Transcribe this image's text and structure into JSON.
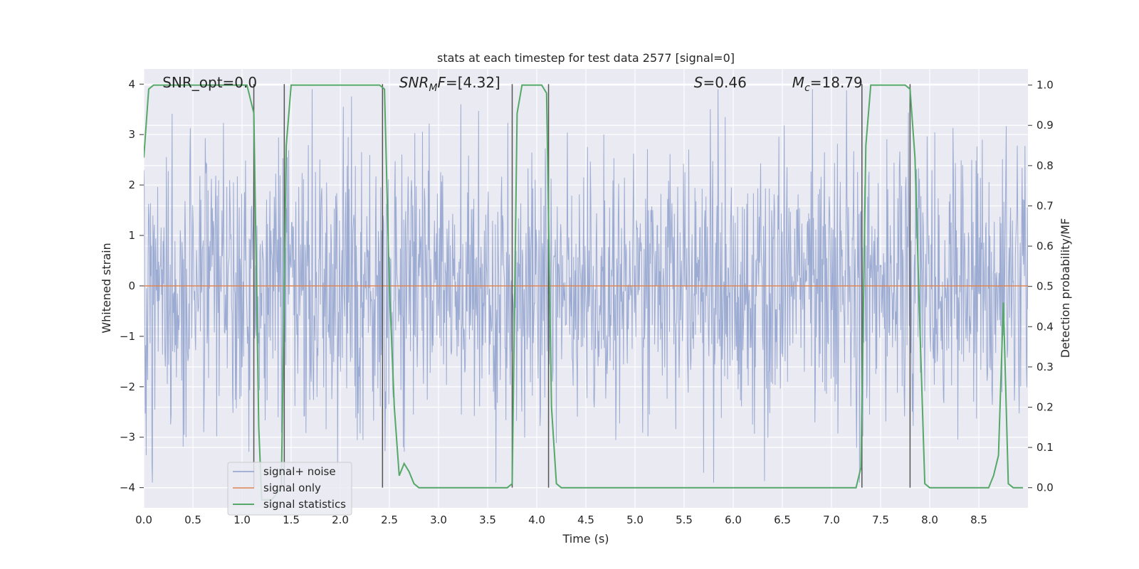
{
  "chart_data": {
    "type": "line",
    "title": "stats at each timestep for test data 2577 [signal=0]",
    "xlabel": "Time (s)",
    "ylabel": "Whitened strain",
    "ylabel_right": "Detection probability/MF",
    "xlim": [
      0,
      9
    ],
    "ylim": [
      -4.4,
      4.3
    ],
    "ylim_right": [
      -0.05,
      1.04
    ],
    "x_ticks": [
      0.0,
      0.5,
      1.0,
      1.5,
      2.0,
      2.5,
      3.0,
      3.5,
      4.0,
      4.5,
      5.0,
      5.5,
      6.0,
      6.5,
      7.0,
      7.5,
      8.0,
      8.5
    ],
    "x_tick_labels": [
      "0.0",
      "0.5",
      "1.0",
      "1.5",
      "2.0",
      "2.5",
      "3.0",
      "3.5",
      "4.0",
      "4.5",
      "5.0",
      "5.5",
      "6.0",
      "6.5",
      "7.0",
      "7.5",
      "8.0",
      "8.5"
    ],
    "y_ticks": [
      4,
      3,
      2,
      1,
      0,
      -1,
      -2,
      -3,
      -4
    ],
    "y_tick_labels": [
      "4",
      "3",
      "2",
      "1",
      "0",
      "−1",
      "−2",
      "−3",
      "−4"
    ],
    "y_right_ticks": [
      1.0,
      0.9,
      0.8,
      0.7,
      0.6,
      0.5,
      0.4,
      0.3,
      0.2,
      0.1,
      0.0
    ],
    "y_right_tick_labels": [
      "1.0",
      "0.9",
      "0.8",
      "0.7",
      "0.6",
      "0.5",
      "0.4",
      "0.3",
      "0.2",
      "0.1",
      "0.0"
    ],
    "grid": true,
    "legend_position": "lower-left",
    "annotations": [
      {
        "text": "SNR_opt=0.0",
        "x": 0.19,
        "y": 4.02
      },
      {
        "text": "SNR",
        "sub": "M",
        "suffix": "F=[4.32]",
        "italic": true,
        "x": 2.6,
        "y": 4.02
      },
      {
        "text": "S",
        "suffix": "=0.46",
        "italic": true,
        "x": 5.6,
        "y": 4.02
      },
      {
        "text": "M",
        "sub": "c",
        "suffix": "=18.79",
        "italic": true,
        "x": 6.6,
        "y": 4.02
      }
    ],
    "series": [
      {
        "name": "signal+ noise",
        "color": "#8ea0cc",
        "axis": "left",
        "description_values": "dense whitened noise, amplitude mostly within ±2.5, peaks near ±4",
        "sample_rate_hz": 204.8,
        "envelope_typical": 1.6,
        "extremes": {
          "max": 3.9,
          "min": -3.9
        }
      },
      {
        "name": "signal only",
        "color": "#dd8452",
        "axis": "left",
        "x": [
          0,
          9
        ],
        "y": [
          0,
          0
        ]
      },
      {
        "name": "signal statistics",
        "color": "#55a868",
        "axis": "right",
        "x": [
          0.0,
          0.05,
          0.1,
          0.2,
          0.5,
          0.8,
          1.0,
          1.05,
          1.12,
          1.17,
          1.2,
          1.3,
          1.4,
          1.45,
          1.5,
          1.55,
          1.6,
          1.8,
          2.0,
          2.2,
          2.4,
          2.45,
          2.5,
          2.55,
          2.6,
          2.65,
          2.7,
          2.75,
          2.8,
          3.0,
          3.4,
          3.7,
          3.75,
          3.8,
          3.85,
          3.9,
          4.0,
          4.05,
          4.1,
          4.15,
          4.2,
          4.25,
          4.5,
          5.0,
          5.5,
          6.0,
          6.5,
          7.0,
          7.25,
          7.3,
          7.35,
          7.4,
          7.6,
          7.75,
          7.8,
          7.85,
          7.9,
          7.95,
          8.0,
          8.2,
          8.4,
          8.6,
          8.65,
          8.7,
          8.75,
          8.8,
          8.85,
          8.95
        ],
        "y": [
          0.82,
          0.99,
          1.0,
          1.0,
          1.0,
          1.0,
          1.0,
          1.0,
          0.93,
          0.15,
          -0.03,
          -0.03,
          0.0,
          0.85,
          1.0,
          1.0,
          1.0,
          1.0,
          1.0,
          1.0,
          1.0,
          0.99,
          0.5,
          0.2,
          0.03,
          0.06,
          0.04,
          0.01,
          0.0,
          0.0,
          0.0,
          0.0,
          0.01,
          0.93,
          1.0,
          1.0,
          1.0,
          1.0,
          0.98,
          0.2,
          0.01,
          0.0,
          0.0,
          0.0,
          0.0,
          0.0,
          0.0,
          0.0,
          0.0,
          0.05,
          0.85,
          1.0,
          1.0,
          1.0,
          0.99,
          0.82,
          0.4,
          0.01,
          0.0,
          0.0,
          0.0,
          0.0,
          0.03,
          0.08,
          0.46,
          0.01,
          0.0,
          0.0
        ]
      }
    ],
    "vertical_markers": {
      "color": "#555555",
      "x": [
        1.12,
        1.43,
        2.43,
        3.75,
        4.12,
        7.31,
        7.8
      ],
      "y_bottom": -4.0,
      "y_top": 4.0
    }
  }
}
